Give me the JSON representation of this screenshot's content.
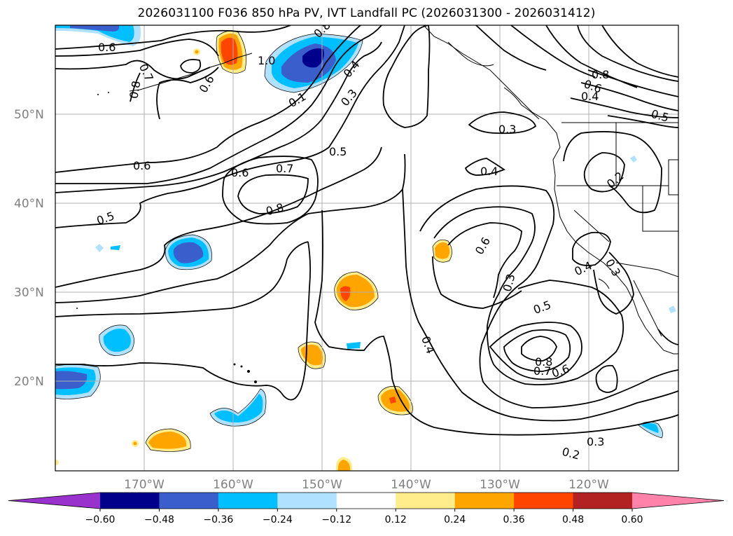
{
  "title": "2026031100 F036 850 hPa PV, IVT Landfall PC (2026031300 - 2026031412)",
  "lat_labels": [
    "50°N",
    "40°N",
    "30°N",
    "20°N"
  ],
  "lon_labels": [
    "170°W",
    "160°W",
    "150°W",
    "140°W",
    "130°W",
    "120°W"
  ],
  "contour_labels": [
    "0.6",
    "0.8",
    "0.7",
    "1.0",
    "0.6",
    "0.8",
    "0.4",
    "0.3",
    "0.1",
    "0.8",
    "0.6",
    "0.4",
    "0.5",
    "0.3",
    "0.5",
    "0.6",
    "0.6",
    "0.7",
    "0.4",
    "0.2",
    "0.8",
    "0.5",
    "0.6",
    "0.4",
    "0.3",
    "0.3",
    "0.5",
    "0.8",
    "0.7",
    "0.6",
    "0.4",
    "0.3",
    "0.2"
  ],
  "colorbar": {
    "ticks": [
      "−0.60",
      "−0.48",
      "−0.36",
      "−0.24",
      "−0.12",
      "0.12",
      "0.24",
      "0.36",
      "0.48",
      "0.60"
    ],
    "colors": [
      "#9932cc",
      "#00008b",
      "#3a5fcd",
      "#00bfff",
      "#b0e2ff",
      "#ffffff",
      "#ffec8b",
      "#ffa500",
      "#ff4500",
      "#b22222",
      "#ff82ab"
    ]
  }
}
